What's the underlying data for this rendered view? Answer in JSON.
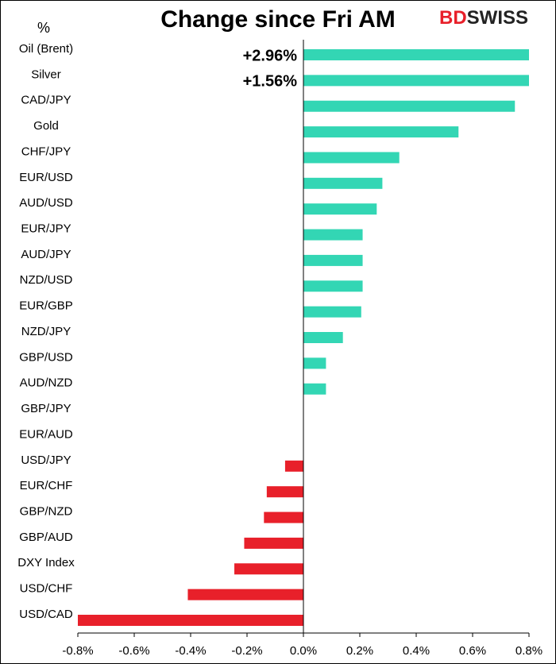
{
  "chart_data": {
    "type": "barh",
    "title": "Change since Fri AM",
    "y_label": "%",
    "logo": [
      "BD",
      "SWISS"
    ],
    "categories": [
      "Oil (Brent)",
      "Silver",
      "CAD/JPY",
      "Gold",
      "CHF/JPY",
      "EUR/USD",
      "AUD/USD",
      "EUR/JPY",
      "AUD/JPY",
      "NZD/USD",
      "EUR/GBP",
      "NZD/JPY",
      "GBP/USD",
      "AUD/NZD",
      "GBP/JPY",
      "EUR/AUD",
      "USD/JPY",
      "EUR/CHF",
      "GBP/NZD",
      "GBP/AUD",
      "DXY Index",
      "USD/CHF",
      "USD/CAD"
    ],
    "values": [
      2.96,
      1.56,
      0.75,
      0.55,
      0.34,
      0.28,
      0.26,
      0.21,
      0.21,
      0.21,
      0.205,
      0.14,
      0.08,
      0.08,
      0,
      0,
      -0.065,
      -0.13,
      -0.14,
      -0.21,
      -0.245,
      -0.41,
      -0.8
    ],
    "value_labels": [
      "+2.96%",
      "+1.56%",
      null,
      null,
      null,
      null,
      null,
      null,
      null,
      null,
      null,
      null,
      null,
      null,
      null,
      null,
      null,
      null,
      null,
      null,
      null,
      null,
      null
    ],
    "positive_color": "#33d6b4",
    "negative_color": "#e8202a",
    "xlim": [
      -0.8,
      0.8
    ],
    "xticks": [
      {
        "value": -0.8,
        "label": "-0.8%"
      },
      {
        "value": -0.6,
        "label": "-0.6%"
      },
      {
        "value": -0.4,
        "label": "-0.4%"
      },
      {
        "value": -0.2,
        "label": "-0.2%"
      },
      {
        "value": 0,
        "label": "0.0%"
      },
      {
        "value": 0.2,
        "label": "0.2%"
      },
      {
        "value": 0.4,
        "label": "0.4%"
      },
      {
        "value": 0.6,
        "label": "0.6%"
      },
      {
        "value": 0.8,
        "label": "0.8%"
      }
    ]
  }
}
